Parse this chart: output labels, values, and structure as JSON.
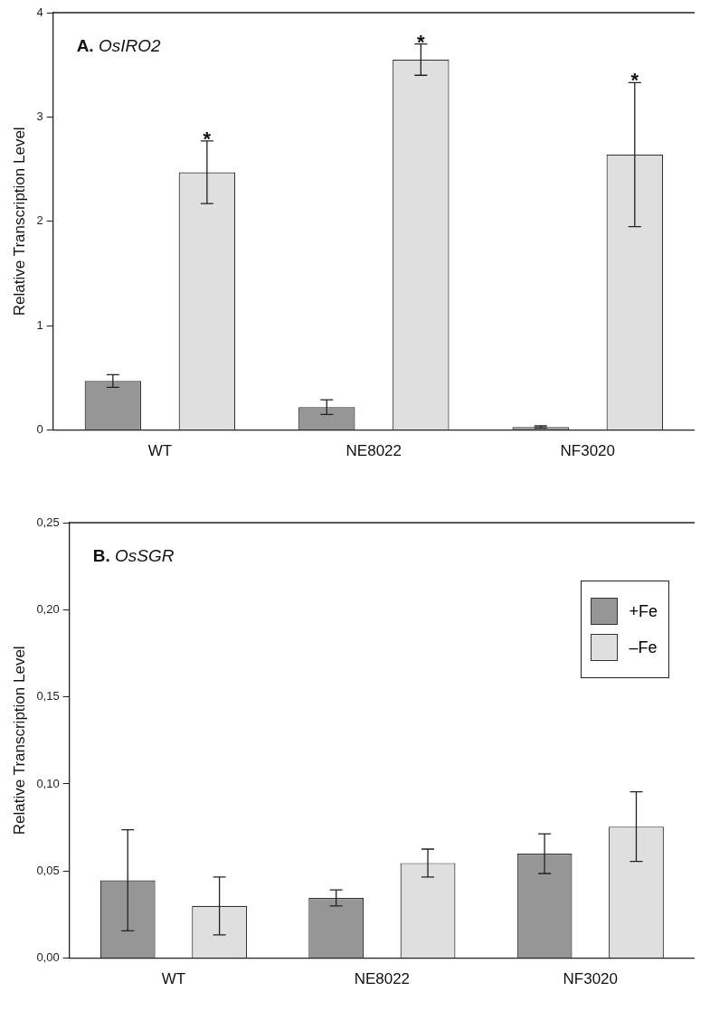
{
  "chart_data": [
    {
      "type": "bar",
      "title": "A. OsIRO2",
      "ylabel": "Relative Transcription Level",
      "categories": [
        "WT",
        "NE8022",
        "NF3020"
      ],
      "series": [
        {
          "color": "#969696",
          "values": [
            0.47,
            0.22,
            0.03
          ],
          "errors": [
            0.06,
            0.07,
            0.01
          ]
        },
        {
          "color": "#dfdfdf",
          "values": [
            2.47,
            3.55,
            2.64
          ],
          "errors": [
            0.3,
            0.15,
            0.69
          ]
        }
      ],
      "ylim": [
        0,
        4
      ],
      "yticks": [
        0,
        1,
        2,
        3,
        4
      ],
      "grid": false,
      "annotations": [
        "*",
        "*",
        "*"
      ]
    },
    {
      "type": "bar",
      "title": "B. OsSGR",
      "ylabel": "Relative Transcription Level",
      "categories": [
        "WT",
        "NE8022",
        "NF3020"
      ],
      "series": [
        {
          "name": "+Fe",
          "color": "#969696",
          "values": [
            0.0447,
            0.0346,
            0.06
          ],
          "errors": [
            0.029,
            0.0046,
            0.0114
          ]
        },
        {
          "name": "–Fe",
          "color": "#dfdfdf",
          "values": [
            0.03,
            0.0546,
            0.0755
          ],
          "errors": [
            0.0166,
            0.008,
            0.02
          ]
        }
      ],
      "ylim": [
        0,
        0.25
      ],
      "yticks": [
        {
          "value": 0,
          "label": "0,00"
        },
        {
          "value": 0.05,
          "label": "0,05"
        },
        {
          "value": 0.1,
          "label": "0,10"
        },
        {
          "value": 0.15,
          "label": "0,15"
        },
        {
          "value": 0.2,
          "label": "0,20"
        },
        {
          "value": 0.25,
          "label": "0,25"
        }
      ],
      "grid": false,
      "legend": "top right"
    }
  ]
}
